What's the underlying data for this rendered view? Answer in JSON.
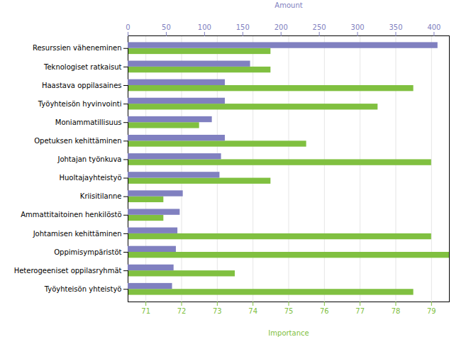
{
  "chart_data": {
    "type": "bar",
    "orientation": "horizontal",
    "categories": [
      "Resurssien väheneminen",
      "Teknologiset ratkaisut",
      "Haastava oppilasaines",
      "Työyhteisön hyvinvointi",
      "Moniammatillisuus",
      "Opetuksen kehittäminen",
      "Johtajan työnkuva",
      "Huoltajayhteistyö",
      "Kriisitilanne",
      "Ammattitaitoinen henkilöstö",
      "Johtamisen kehittäminen",
      "Oppimisympäristöt",
      "Heterogeeniset oppilasryhmät",
      "Työyhteisön yhteistyö"
    ],
    "series": [
      {
        "name": "Amount",
        "color": "#8080c0",
        "axis": "y2",
        "values": [
          405,
          160,
          127,
          127,
          110,
          127,
          122,
          120,
          72,
          68,
          65,
          63,
          60,
          58
        ]
      },
      {
        "name": "Importance",
        "color": "#80c040",
        "values": [
          74.5,
          74.5,
          78.5,
          77.5,
          72.5,
          75.5,
          79.0,
          74.5,
          71.5,
          71.5,
          79.0,
          79.5,
          73.5,
          78.5
        ]
      }
    ],
    "ylabel": "Importance",
    "y2label": "Amount",
    "ylim": [
      70.5,
      79.5
    ],
    "yticks": [
      71,
      72,
      73,
      74,
      75,
      76,
      77,
      78,
      79
    ],
    "y2lim": [
      0,
      420
    ],
    "y2ticks": [
      0,
      50,
      100,
      150,
      200,
      250,
      300,
      350,
      400
    ],
    "grid": true
  }
}
